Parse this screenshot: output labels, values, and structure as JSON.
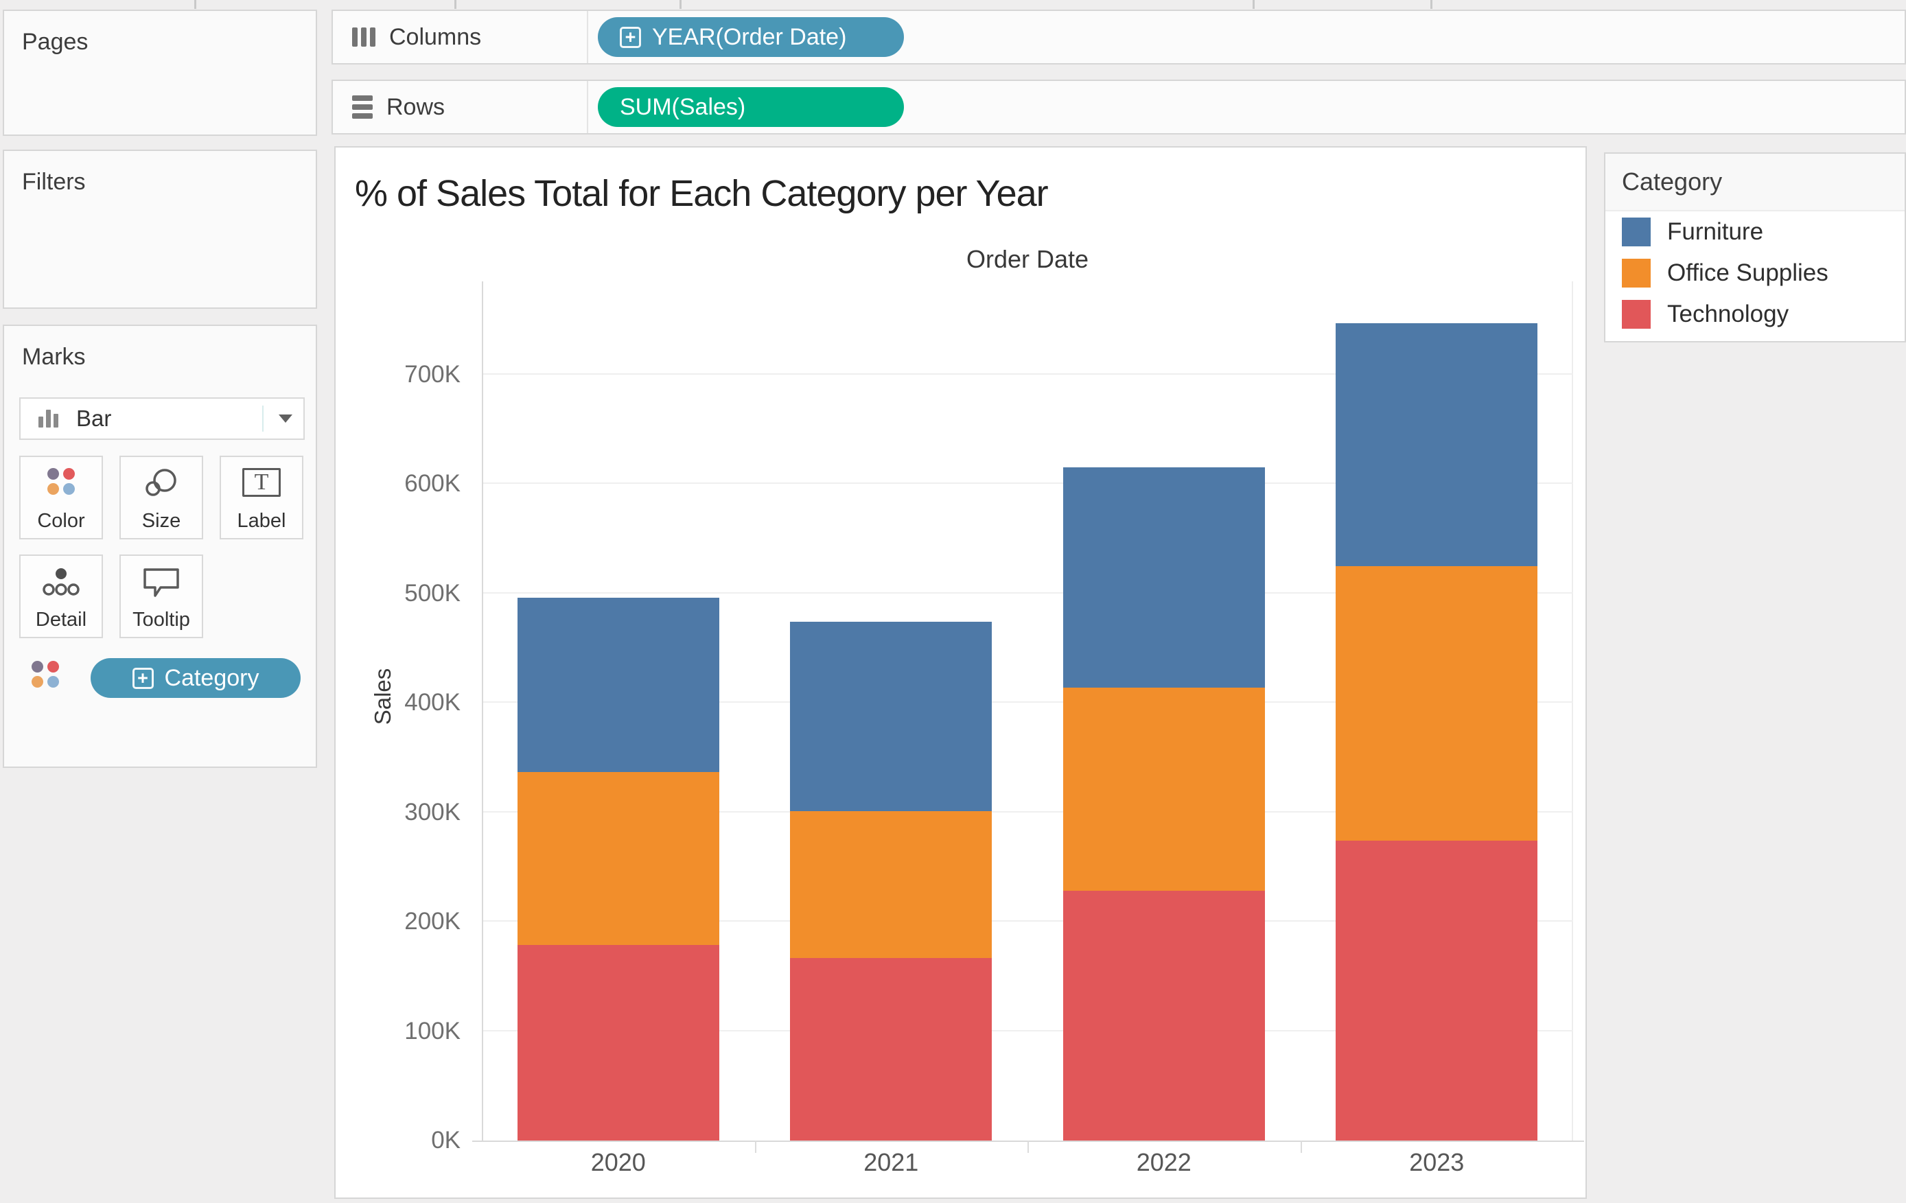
{
  "shelves": {
    "columns_label": "Columns",
    "rows_label": "Rows",
    "columns_pill": "YEAR(Order Date)",
    "rows_pill": "SUM(Sales)",
    "expand_glyph": "+"
  },
  "panels": {
    "pages_label": "Pages",
    "filters_label": "Filters"
  },
  "marks": {
    "title": "Marks",
    "mark_type": "Bar",
    "buttons": [
      "Color",
      "Size",
      "Label",
      "Detail",
      "Tooltip"
    ],
    "pill": "Category",
    "label_icon_letter": "T"
  },
  "legend": {
    "title": "Category",
    "entries": [
      {
        "label": "Furniture",
        "color": "#4e79a7"
      },
      {
        "label": "Office Supplies",
        "color": "#f28e2b"
      },
      {
        "label": "Technology",
        "color": "#e15759"
      }
    ]
  },
  "colors": {
    "dimension_pill": "#4a97b6",
    "measure_pill": "#00b287",
    "furniture": "#4e79a7",
    "office_supplies": "#f28e2b",
    "technology": "#e15759",
    "color_icon_dots": [
      "#80778f",
      "#e25a5c",
      "#eba45f",
      "#8db1d3"
    ]
  },
  "chart_data": {
    "type": "bar",
    "stacked": true,
    "title": "% of Sales Total for Each Category per Year",
    "xlabel": "Order Date",
    "ylabel": "Sales",
    "categories": [
      "2020",
      "2021",
      "2022",
      "2023"
    ],
    "series": [
      {
        "name": "Technology",
        "color": "#e15759",
        "values": [
          179000,
          167000,
          228000,
          274000
        ]
      },
      {
        "name": "Office Supplies",
        "color": "#f28e2b",
        "values": [
          158000,
          134000,
          186000,
          251000
        ]
      },
      {
        "name": "Furniture",
        "color": "#4e79a7",
        "values": [
          159000,
          173000,
          201000,
          222000
        ]
      }
    ],
    "totals": [
      496000,
      474000,
      615000,
      747000
    ],
    "ylim": [
      0,
      790000
    ],
    "ytick_step": 100000,
    "yticks": [
      "0K",
      "100K",
      "200K",
      "300K",
      "400K",
      "500K",
      "600K",
      "700K"
    ],
    "grid": "horizontal",
    "legend_position": "right"
  }
}
